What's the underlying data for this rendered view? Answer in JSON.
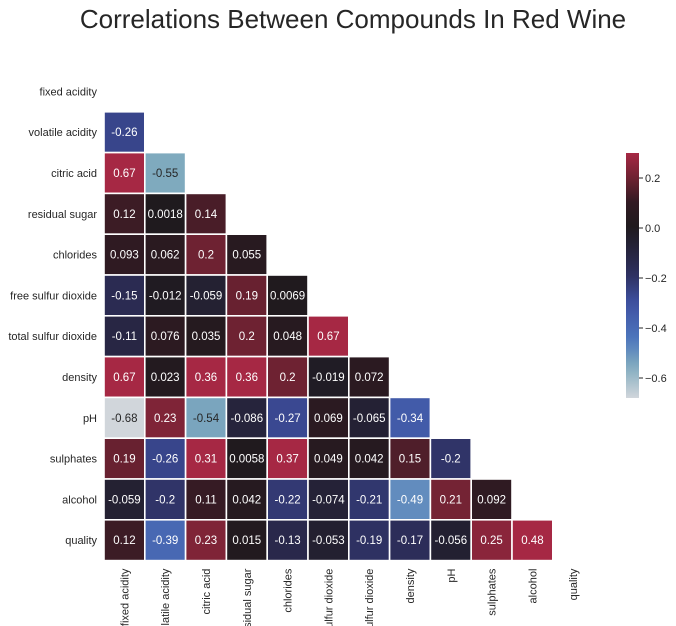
{
  "chart_data": {
    "type": "heatmap",
    "title": "Correlations Between Compounds In Red Wine",
    "variables": [
      "fixed acidity",
      "volatile acidity",
      "citric acid",
      "residual sugar",
      "chlorides",
      "free sulfur dioxide",
      "total sulfur dioxide",
      "density",
      "pH",
      "sulphates",
      "alcohol",
      "quality"
    ],
    "mask": "upper-triangle-including-diagonal",
    "lower_triangle_values": [
      [],
      [
        -0.26
      ],
      [
        0.67,
        -0.55
      ],
      [
        0.12,
        0.0018,
        0.14
      ],
      [
        0.093,
        0.062,
        0.2,
        0.055
      ],
      [
        -0.15,
        -0.012,
        -0.059,
        0.19,
        0.0069
      ],
      [
        -0.11,
        0.076,
        0.035,
        0.2,
        0.048,
        0.67
      ],
      [
        0.67,
        0.023,
        0.36,
        0.36,
        0.2,
        -0.019,
        0.072
      ],
      [
        -0.68,
        0.23,
        -0.54,
        -0.086,
        -0.27,
        0.069,
        -0.065,
        -0.34
      ],
      [
        0.19,
        -0.26,
        0.31,
        0.0058,
        0.37,
        0.049,
        0.042,
        0.15,
        -0.2
      ],
      [
        -0.059,
        -0.2,
        0.11,
        0.042,
        -0.22,
        -0.074,
        -0.21,
        -0.49,
        0.21,
        0.092
      ],
      [
        0.12,
        -0.39,
        0.23,
        0.015,
        -0.13,
        -0.053,
        -0.19,
        -0.17,
        -0.056,
        0.25,
        0.48
      ]
    ],
    "cell_labels": [
      [],
      [
        "-0.26"
      ],
      [
        "0.67",
        "-0.55"
      ],
      [
        "0.12",
        "0.0018",
        "0.14"
      ],
      [
        "0.093",
        "0.062",
        "0.2",
        "0.055"
      ],
      [
        "-0.15",
        "-0.012",
        "-0.059",
        "0.19",
        "0.0069"
      ],
      [
        "-0.11",
        "0.076",
        "0.035",
        "0.2",
        "0.048",
        "0.67"
      ],
      [
        "0.67",
        "0.023",
        "0.36",
        "0.36",
        "0.2",
        "-0.019",
        "0.072"
      ],
      [
        "-0.68",
        "0.23",
        "-0.54",
        "-0.086",
        "-0.27",
        "0.069",
        "-0.065",
        "-0.34"
      ],
      [
        "0.19",
        "-0.26",
        "0.31",
        "0.0058",
        "0.37",
        "0.049",
        "0.042",
        "0.15",
        "-0.2"
      ],
      [
        "-0.059",
        "-0.2",
        "0.11",
        "0.042",
        "-0.22",
        "-0.074",
        "-0.21",
        "-0.49",
        "0.21",
        "0.092"
      ],
      [
        "0.12",
        "-0.39",
        "0.23",
        "0.015",
        "-0.13",
        "-0.053",
        "-0.19",
        "-0.17",
        "-0.056",
        "0.25",
        "0.48"
      ]
    ],
    "colorbar": {
      "range": [
        -0.68,
        0.3
      ],
      "ticks": [
        0.2,
        0.0,
        -0.2,
        -0.4,
        -0.6
      ],
      "tick_labels": [
        "0.2",
        "0.0",
        "−0.2",
        "−0.4",
        "−0.6"
      ],
      "placement": "right"
    },
    "colormap": "icefire",
    "grid": false
  }
}
